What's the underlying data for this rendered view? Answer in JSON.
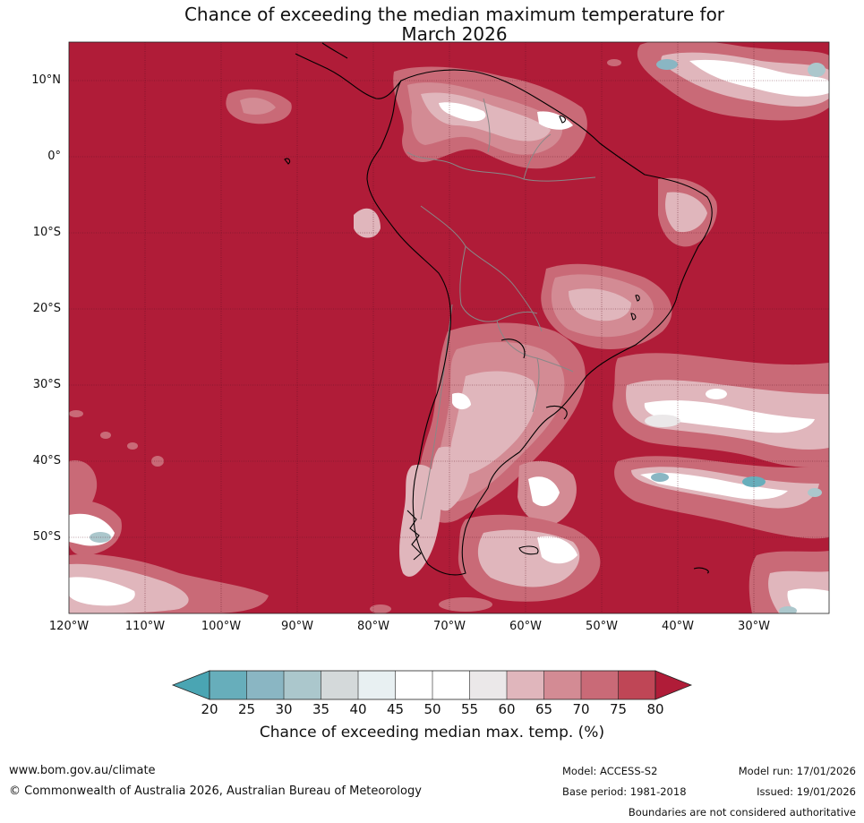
{
  "title": {
    "line1": "Chance of exceeding the median maximum temperature for",
    "line2": "March 2026"
  },
  "map": {
    "latitude_labels": [
      "10°N",
      "0°",
      "10°S",
      "20°S",
      "30°S",
      "40°S",
      "50°S"
    ],
    "longitude_labels": [
      "120°W",
      "110°W",
      "100°W",
      "90°W",
      "80°W",
      "70°W",
      "60°W",
      "50°W",
      "40°W",
      "30°W"
    ],
    "colors": {
      "background_high": "#b01c38",
      "ocean_gridline": "#5a1020",
      "coastline": "#000000",
      "borders": "#888888"
    }
  },
  "colorbar": {
    "ticks": [
      "20",
      "25",
      "30",
      "35",
      "40",
      "45",
      "50",
      "55",
      "60",
      "65",
      "70",
      "75",
      "80"
    ],
    "colors": [
      "#4aa5b3",
      "#67aebb",
      "#8ab6c3",
      "#abc7cc",
      "#d4d9da",
      "#e8f0f2",
      "#ffffff",
      "#ffffff",
      "#ebe8e9",
      "#e0b6bc",
      "#d38b94",
      "#c96a77",
      "#bf4656",
      "#b01c38"
    ],
    "label": "Chance of exceeding median max. temp. (%)"
  },
  "footer": {
    "website": "www.bom.gov.au/climate",
    "copyright": "© Commonwealth of Australia 2026, Australian Bureau of Meteorology",
    "model": "Model: ACCESS-S2",
    "base_period": "Base period: 1981-2018",
    "model_run": "Model run: 17/01/2026",
    "issued": "Issued: 19/01/2026",
    "disclaimer": "Boundaries are not considered authoritative"
  }
}
